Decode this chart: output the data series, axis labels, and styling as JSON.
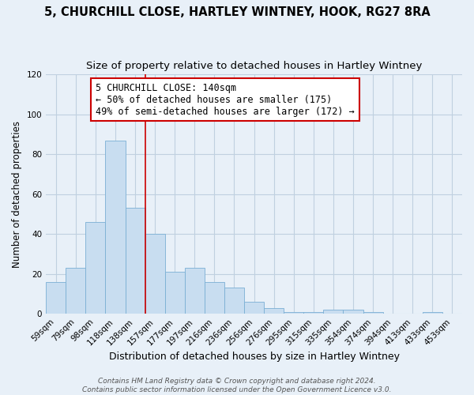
{
  "title_line1": "5, CHURCHILL CLOSE, HARTLEY WINTNEY, HOOK, RG27 8RA",
  "title_line2": "Size of property relative to detached houses in Hartley Wintney",
  "xlabel": "Distribution of detached houses by size in Hartley Wintney",
  "ylabel": "Number of detached properties",
  "bar_labels": [
    "59sqm",
    "79sqm",
    "98sqm",
    "118sqm",
    "138sqm",
    "157sqm",
    "177sqm",
    "197sqm",
    "216sqm",
    "236sqm",
    "256sqm",
    "276sqm",
    "295sqm",
    "315sqm",
    "335sqm",
    "354sqm",
    "374sqm",
    "394sqm",
    "413sqm",
    "433sqm",
    "453sqm"
  ],
  "bar_values": [
    16,
    23,
    46,
    87,
    53,
    40,
    21,
    23,
    16,
    13,
    6,
    3,
    1,
    1,
    2,
    2,
    1,
    0,
    0,
    1,
    0
  ],
  "bar_color": "#c8ddf0",
  "bar_edge_color": "#7aafd4",
  "vline_x": 4.5,
  "vline_color": "#cc0000",
  "annotation_box_text": "5 CHURCHILL CLOSE: 140sqm\n← 50% of detached houses are smaller (175)\n49% of semi-detached houses are larger (172) →",
  "ylim": [
    0,
    120
  ],
  "yticks": [
    0,
    20,
    40,
    60,
    80,
    100,
    120
  ],
  "grid_color": "#c0d0e0",
  "background_color": "#e8f0f8",
  "footer_line1": "Contains HM Land Registry data © Crown copyright and database right 2024.",
  "footer_line2": "Contains public sector information licensed under the Open Government Licence v3.0.",
  "title_fontsize": 10.5,
  "subtitle_fontsize": 9.5,
  "xlabel_fontsize": 9,
  "ylabel_fontsize": 8.5,
  "tick_fontsize": 7.5,
  "annotation_fontsize": 8.5,
  "footer_fontsize": 6.5
}
